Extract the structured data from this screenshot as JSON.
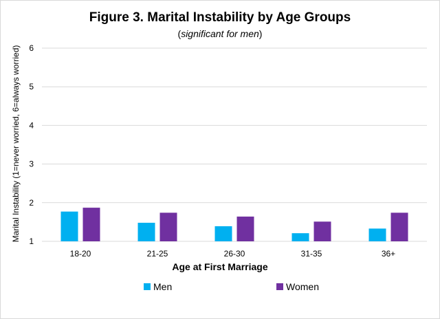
{
  "chart_data": {
    "type": "bar",
    "title": "Figure 3. Marital Instability by Age Groups",
    "subtitle": {
      "open": "(",
      "italic": "significant for men",
      "close": ")"
    },
    "xlabel": "Age at First Marriage",
    "ylabel": "Marital Instability (1=never worried, 6=always worried)",
    "categories": [
      "18-20",
      "21-25",
      "26-30",
      "31-35",
      "36+"
    ],
    "ylim": [
      1,
      6
    ],
    "yticks": [
      1,
      2,
      3,
      4,
      5,
      6
    ],
    "grid": true,
    "legend_position": "bottom",
    "series": [
      {
        "name": "Men",
        "color": "#00b0f0",
        "values": [
          1.77,
          1.48,
          1.39,
          1.21,
          1.33
        ]
      },
      {
        "name": "Women",
        "color": "#7030a0",
        "values": [
          1.87,
          1.74,
          1.64,
          1.51,
          1.74
        ]
      }
    ],
    "gridline_color": "#d9d9d9"
  }
}
